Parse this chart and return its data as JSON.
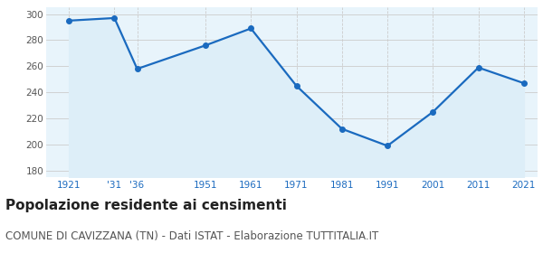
{
  "years": [
    1921,
    1931,
    1936,
    1951,
    1961,
    1971,
    1981,
    1991,
    2001,
    2011,
    2021
  ],
  "population": [
    295,
    297,
    258,
    276,
    289,
    245,
    212,
    199,
    225,
    259,
    247
  ],
  "x_tick_labels": [
    "1921",
    "'31",
    "'36",
    "1951",
    "1961",
    "1971",
    "1981",
    "1991",
    "2001",
    "2011",
    "2021"
  ],
  "ylim": [
    175,
    305
  ],
  "yticks": [
    180,
    200,
    220,
    240,
    260,
    280,
    300
  ],
  "line_color": "#1a6abf",
  "fill_color": "#ddeef8",
  "marker": "o",
  "marker_size": 4,
  "line_width": 1.6,
  "title": "Popolazione residente ai censimenti",
  "subtitle": "COMUNE DI CAVIZZANA (TN) - Dati ISTAT - Elaborazione TUTTITALIA.IT",
  "title_fontsize": 11,
  "subtitle_fontsize": 8.5,
  "tick_color_x": "#1a6abf",
  "tick_color_y": "#555555",
  "grid_color": "#cccccc",
  "bg_color": "#e8f4fb",
  "fig_bg": "#ffffff",
  "xlim_left": 1916,
  "xlim_right": 2024
}
